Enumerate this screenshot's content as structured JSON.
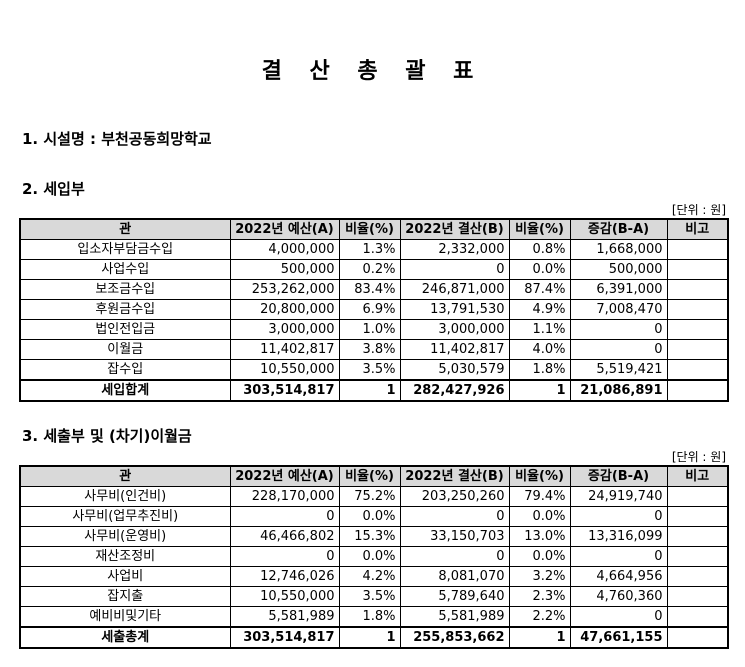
{
  "title": "결 산 총 괄 표",
  "facility": "1. 시설명 : 부천공동희망학교",
  "revenue": {
    "heading": "2. 세입부",
    "unit": "[단위 : 원]",
    "columns": [
      "관",
      "2022년 예산(A)",
      "비율(%)",
      "2022년 결산(B)",
      "비율(%)",
      "증감(B-A)",
      "비고"
    ],
    "rows": [
      [
        "입소자부담금수입",
        "4,000,000",
        "1.3%",
        "2,332,000",
        "0.8%",
        "1,668,000",
        ""
      ],
      [
        "사업수입",
        "500,000",
        "0.2%",
        "0",
        "0.0%",
        "500,000",
        ""
      ],
      [
        "보조금수입",
        "253,262,000",
        "83.4%",
        "246,871,000",
        "87.4%",
        "6,391,000",
        ""
      ],
      [
        "후원금수입",
        "20,800,000",
        "6.9%",
        "13,791,530",
        "4.9%",
        "7,008,470",
        ""
      ],
      [
        "법인전입금",
        "3,000,000",
        "1.0%",
        "3,000,000",
        "1.1%",
        "0",
        ""
      ],
      [
        "이월금",
        "11,402,817",
        "3.8%",
        "11,402,817",
        "4.0%",
        "0",
        ""
      ],
      [
        "잡수입",
        "10,550,000",
        "3.5%",
        "5,030,579",
        "1.8%",
        "5,519,421",
        ""
      ]
    ],
    "total": [
      "세입합계",
      "303,514,817",
      "1",
      "282,427,926",
      "1",
      "21,086,891",
      ""
    ]
  },
  "expense": {
    "heading": "3. 세출부 및 (차기)이월금",
    "unit": "[단위 : 원]",
    "columns": [
      "관",
      "2022년 예산(A)",
      "비율(%)",
      "2022년 결산(B)",
      "비율(%)",
      "증감(B-A)",
      "비고"
    ],
    "rows": [
      [
        "사무비(인건비)",
        "228,170,000",
        "75.2%",
        "203,250,260",
        "79.4%",
        "24,919,740",
        ""
      ],
      [
        "사무비(업무추진비)",
        "0",
        "0.0%",
        "0",
        "0.0%",
        "0",
        ""
      ],
      [
        "사무비(운영비)",
        "46,466,802",
        "15.3%",
        "33,150,703",
        "13.0%",
        "13,316,099",
        ""
      ],
      [
        "재산조정비",
        "0",
        "0.0%",
        "0",
        "0.0%",
        "0",
        ""
      ],
      [
        "사업비",
        "12,746,026",
        "4.2%",
        "8,081,070",
        "3.2%",
        "4,664,956",
        ""
      ],
      [
        "잡지출",
        "10,550,000",
        "3.5%",
        "5,789,640",
        "2.3%",
        "4,760,360",
        ""
      ],
      [
        "예비비및기타",
        "5,581,989",
        "1.8%",
        "5,581,989",
        "2.2%",
        "0",
        ""
      ]
    ],
    "total": [
      "세출총계",
      "303,514,817",
      "1",
      "255,853,662",
      "1",
      "47,661,155",
      ""
    ]
  }
}
